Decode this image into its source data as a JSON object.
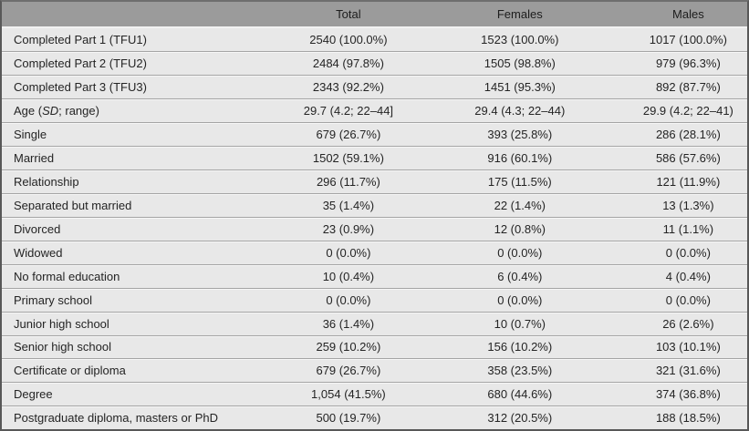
{
  "table": {
    "columns": [
      "",
      "Total",
      "Females",
      "Males"
    ],
    "rows": [
      {
        "label": "Completed Part 1 (TFU1)",
        "total": "2540 (100.0%)",
        "females": "1523 (100.0%)",
        "males": "1017 (100.0%)"
      },
      {
        "label": "Completed Part 2 (TFU2)",
        "total": "2484 (97.8%)",
        "females": "1505 (98.8%)",
        "males": "979 (96.3%)"
      },
      {
        "label": "Completed Part 3 (TFU3)",
        "total": "2343 (92.2%)",
        "females": "1451 (95.3%)",
        "males": "892 (87.7%)"
      },
      {
        "label": "Age (SD; range)",
        "label_italic": "SD",
        "total": "29.7 (4.2; 22–44]",
        "females": "29.4 (4.3; 22–44)",
        "males": "29.9 (4.2; 22–41)"
      },
      {
        "label": "Single",
        "total": "679 (26.7%)",
        "females": "393 (25.8%)",
        "males": "286 (28.1%)"
      },
      {
        "label": "Married",
        "total": "1502 (59.1%)",
        "females": "916 (60.1%)",
        "males": "586 (57.6%)"
      },
      {
        "label": "Relationship",
        "total": "296 (11.7%)",
        "females": "175 (11.5%)",
        "males": "121 (11.9%)"
      },
      {
        "label": "Separated but married",
        "total": "35 (1.4%)",
        "females": "22 (1.4%)",
        "males": "13 (1.3%)"
      },
      {
        "label": "Divorced",
        "total": "23 (0.9%)",
        "females": "12 (0.8%)",
        "males": "11 (1.1%)"
      },
      {
        "label": "Widowed",
        "total": "0 (0.0%)",
        "females": "0 (0.0%)",
        "males": "0 (0.0%)"
      },
      {
        "label": "No formal education",
        "total": "10 (0.4%)",
        "females": "6 (0.4%)",
        "males": "4 (0.4%)"
      },
      {
        "label": "Primary school",
        "total": "0 (0.0%)",
        "females": "0 (0.0%)",
        "males": "0 (0.0%)"
      },
      {
        "label": "Junior high school",
        "total": "36 (1.4%)",
        "females": "10 (0.7%)",
        "males": "26 (2.6%)"
      },
      {
        "label": "Senior high school",
        "total": "259 (10.2%)",
        "females": "156 (10.2%)",
        "males": "103 (10.1%)"
      },
      {
        "label": "Certificate or diploma",
        "total": "679 (26.7%)",
        "females": "358 (23.5%)",
        "males": "321 (31.6%)"
      },
      {
        "label": "Degree",
        "total": "1,054 (41.5%)",
        "females": "680 (44.6%)",
        "males": "374 (36.8%)"
      },
      {
        "label": "Postgraduate diploma, masters or PhD",
        "total": "500 (19.7%)",
        "females": "312 (20.5%)",
        "males": "188 (18.5%)"
      }
    ],
    "colors": {
      "header_bg": "#9b9b9b",
      "row_bg": "#e8e8e8",
      "separator_line": "#a5a5a5",
      "separator_highlight": "#f6f6f6",
      "outer_border": "#585858",
      "text": "#242424"
    }
  }
}
